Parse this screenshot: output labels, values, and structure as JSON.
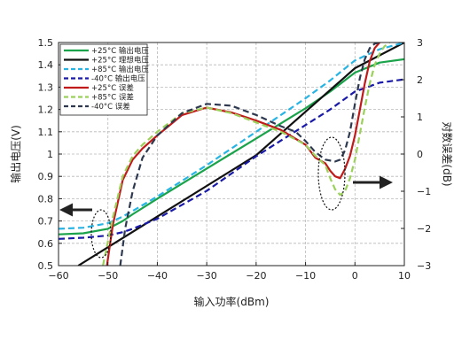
{
  "chart_data": {
    "type": "line",
    "xlabel": "输入功率(dBm)",
    "ylabel_left": "输出电压(V)",
    "ylabel_right": "对数误差(dB)",
    "xlim": [
      -60,
      10
    ],
    "ylim_left": [
      0.5,
      1.5
    ],
    "ylim_right": [
      -3,
      3
    ],
    "x_ticks": [
      -60,
      -50,
      -40,
      -30,
      -20,
      -10,
      0,
      10
    ],
    "y_left_ticks": [
      0.5,
      0.6,
      0.7,
      0.8,
      0.9,
      1.0,
      1.1,
      1.2,
      1.3,
      1.4,
      1.5
    ],
    "y_left_tick_labels": [
      "0.5",
      "0.6",
      "0.7",
      "0.8",
      "0.9",
      "1",
      "1.1",
      "1.2",
      "1.3",
      "1.4",
      "1.5"
    ],
    "y_right_ticks": [
      -3,
      -2,
      -1,
      0,
      1,
      2,
      3
    ],
    "grid": true,
    "legend_position": "top-left",
    "series": [
      {
        "name": "+25°C  输出电压",
        "axis": "left",
        "color": "#1aa34a",
        "dash": "solid",
        "x": [
          -60,
          -55,
          -50,
          -47,
          -45,
          -40,
          -30,
          -20,
          -10,
          -5,
          0,
          5,
          10
        ],
        "y": [
          0.64,
          0.645,
          0.665,
          0.7,
          0.73,
          0.8,
          0.935,
          1.07,
          1.205,
          1.28,
          1.365,
          1.41,
          1.425
        ]
      },
      {
        "name": "+25°C  理想电压",
        "axis": "left",
        "color": "#111111",
        "dash": "solid",
        "x": [
          -56,
          -40,
          -20,
          0,
          10
        ],
        "y": [
          0.5,
          0.72,
          0.995,
          1.385,
          1.5
        ]
      },
      {
        "name": "+85°C  输出电压",
        "axis": "left",
        "color": "#27b4e4",
        "dash": "dashed",
        "x": [
          -60,
          -55,
          -50,
          -47,
          -45,
          -40,
          -30,
          -20,
          -10,
          -5,
          0,
          5,
          10
        ],
        "y": [
          0.665,
          0.67,
          0.69,
          0.72,
          0.745,
          0.81,
          0.95,
          1.1,
          1.25,
          1.33,
          1.42,
          1.47,
          1.5
        ]
      },
      {
        "name": "-40°C  输出电压",
        "axis": "left",
        "color": "#1a1aa8",
        "dash": "dashed",
        "x": [
          -60,
          -55,
          -50,
          -47,
          -45,
          -40,
          -30,
          -20,
          -10,
          -5,
          0,
          5,
          10
        ],
        "y": [
          0.62,
          0.625,
          0.635,
          0.65,
          0.665,
          0.71,
          0.835,
          0.99,
          1.13,
          1.2,
          1.28,
          1.32,
          1.335
        ]
      },
      {
        "name": "+25°C  误差",
        "axis": "right",
        "color": "#c11a1a",
        "dash": "solid",
        "x": [
          -50.2,
          -49,
          -47,
          -45,
          -43,
          -40,
          -35,
          -30,
          -25,
          -20,
          -15,
          -10,
          -8,
          -6,
          -5,
          -4,
          -3,
          -2,
          -1,
          0,
          1,
          2,
          3,
          4,
          5
        ],
        "y": [
          -3,
          -1.9,
          -0.7,
          -0.15,
          0.15,
          0.5,
          1.05,
          1.25,
          1.12,
          0.9,
          0.65,
          0.25,
          -0.1,
          -0.25,
          -0.45,
          -0.6,
          -0.65,
          -0.4,
          -0.05,
          0.5,
          1.2,
          1.9,
          2.5,
          2.85,
          3
        ]
      },
      {
        "name": "+85°C  误差",
        "axis": "right",
        "color": "#9bd15a",
        "dash": "dashed",
        "x": [
          -51,
          -49,
          -47,
          -45,
          -43,
          -40,
          -35,
          -30,
          -25,
          -20,
          -15,
          -10,
          -8,
          -6,
          -5,
          -4,
          -3,
          -2,
          -1,
          0,
          1,
          2,
          3,
          4,
          5,
          6,
          7
        ],
        "y": [
          -3,
          -1.7,
          -0.6,
          -0.05,
          0.25,
          0.6,
          1.1,
          1.25,
          1.1,
          0.85,
          0.6,
          0.25,
          -0.05,
          -0.3,
          -0.65,
          -0.95,
          -1.1,
          -1.0,
          -0.65,
          -0.15,
          0.55,
          1.25,
          1.9,
          2.4,
          2.7,
          2.9,
          3
        ]
      },
      {
        "name": "-40°C  误差",
        "axis": "right",
        "color": "#2e3950",
        "dash": "dashed",
        "x": [
          -47.5,
          -46.5,
          -45,
          -43,
          -40,
          -35,
          -30,
          -25,
          -20,
          -15,
          -12,
          -10,
          -8,
          -6,
          -4,
          -3,
          -2,
          -1,
          0,
          1,
          2,
          3,
          4,
          5
        ],
        "y": [
          -3,
          -2.0,
          -1.0,
          -0.1,
          0.5,
          1.1,
          1.35,
          1.3,
          1.05,
          0.75,
          0.6,
          0.35,
          0.05,
          -0.15,
          -0.2,
          -0.15,
          0.1,
          0.6,
          1.35,
          2.05,
          2.55,
          2.85,
          2.97,
          3
        ]
      }
    ]
  }
}
